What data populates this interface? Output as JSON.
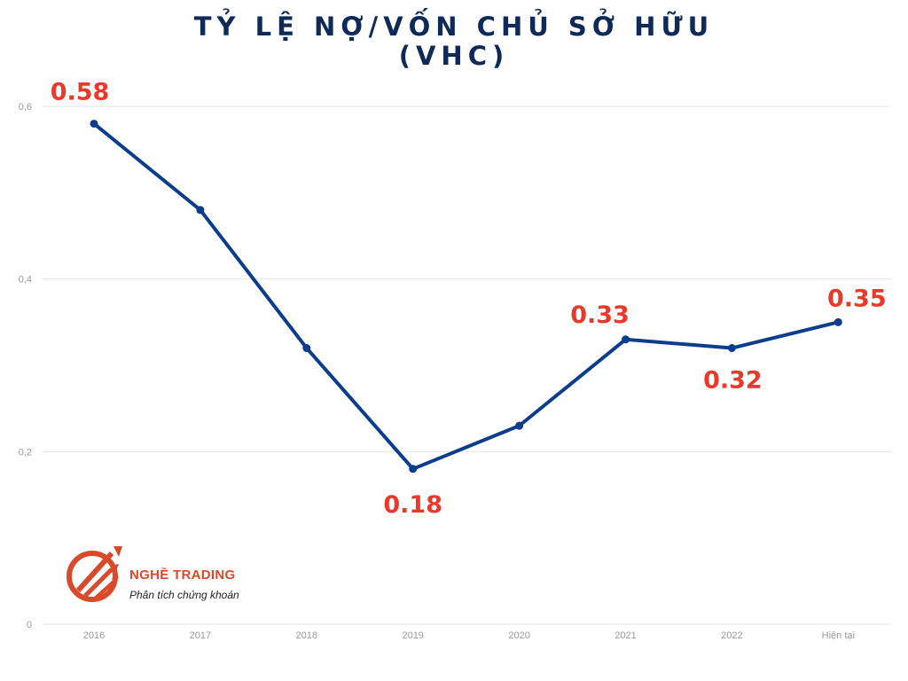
{
  "title_line1": "TỶ LỆ NỢ/VỐN CHỦ SỞ HỮU",
  "title_line2": "(VHC)",
  "brand": {
    "name": "NGHỀ TRADING",
    "tagline": "Phân tích chứng khoán",
    "color": "#d94a2b"
  },
  "chart_data": {
    "type": "line",
    "categories": [
      "2016",
      "2017",
      "2018",
      "2019",
      "2020",
      "2021",
      "2022",
      "Hiện tại"
    ],
    "series": [
      {
        "values": [
          0.58,
          0.48,
          0.32,
          0.18,
          0.23,
          0.33,
          0.32,
          0.35
        ]
      }
    ],
    "data_labels": [
      {
        "index": 0,
        "text": "0.58"
      },
      {
        "index": 3,
        "text": "0.18"
      },
      {
        "index": 5,
        "text": "0.33"
      },
      {
        "index": 6,
        "text": "0.32"
      },
      {
        "index": 7,
        "text": "0.35"
      }
    ],
    "yticks": [
      {
        "value": 0,
        "label": "0"
      },
      {
        "value": 0.2,
        "label": "0,2"
      },
      {
        "value": 0.4,
        "label": "0,4"
      },
      {
        "value": 0.6,
        "label": "0,6"
      }
    ],
    "ylim": [
      0,
      0.6
    ],
    "grid": true,
    "line_color": "#0b3d8c",
    "label_color": "#e8392b"
  }
}
